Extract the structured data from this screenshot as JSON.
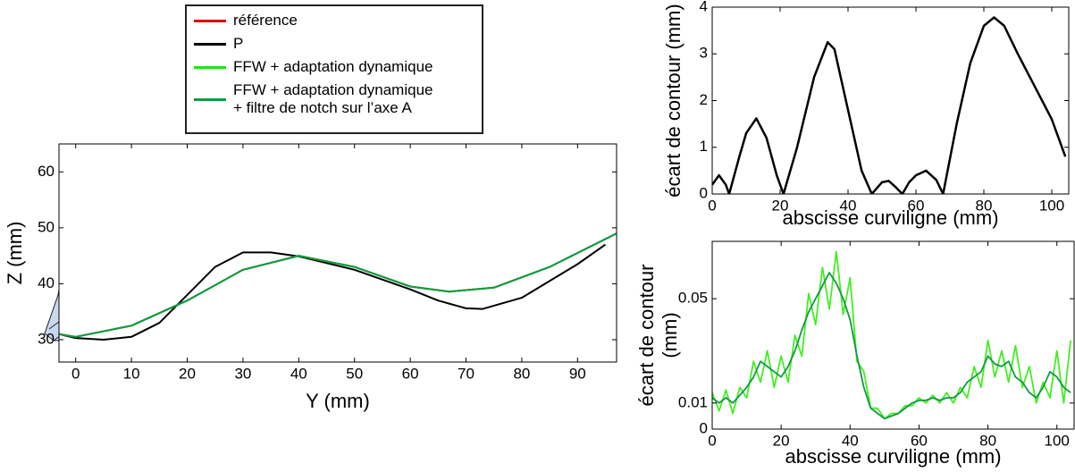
{
  "chart_data": [
    {
      "type": "line",
      "xlabel": "Y (mm)",
      "ylabel": "Z (mm)",
      "xlim": [
        -3,
        97
      ],
      "ylim": [
        26,
        65
      ],
      "xticks": [
        0,
        10,
        20,
        30,
        40,
        50,
        60,
        70,
        80,
        90
      ],
      "yticks": [
        30,
        40,
        50,
        60
      ],
      "series": [
        {
          "name": "référence",
          "color": "#e00000",
          "x": [
            -3,
            0,
            10,
            20,
            30,
            40,
            50,
            60,
            67,
            75,
            85,
            97
          ],
          "values": [
            31,
            30.5,
            32.5,
            37,
            42.5,
            45,
            43,
            39.5,
            38.6,
            39.3,
            43,
            49
          ]
        },
        {
          "name": "P",
          "color": "#000000",
          "x": [
            -3,
            0,
            5,
            10,
            15,
            20,
            25,
            30,
            35,
            40,
            50,
            60,
            65,
            70,
            73,
            80,
            90,
            95
          ],
          "values": [
            31,
            30.3,
            30,
            30.5,
            33,
            38,
            43,
            45.6,
            45.6,
            44.9,
            42.5,
            39,
            37,
            35.6,
            35.5,
            37.5,
            43.5,
            47
          ]
        },
        {
          "name": "FFW + adaptation dynamique",
          "color": "#22e022",
          "x": [
            -3,
            0,
            10,
            20,
            30,
            40,
            50,
            60,
            67,
            75,
            85,
            97
          ],
          "values": [
            31,
            30.5,
            32.5,
            37,
            42.5,
            45,
            43,
            39.5,
            38.6,
            39.3,
            43,
            49
          ]
        },
        {
          "name": "FFW + adaptation dynamique\n+ filtre de notch sur l’axe A",
          "color": "#119944",
          "x": [
            -3,
            0,
            10,
            20,
            30,
            40,
            50,
            60,
            67,
            75,
            85,
            97
          ],
          "values": [
            31,
            30.5,
            32.5,
            37,
            42.5,
            45,
            43,
            39.5,
            38.6,
            39.3,
            43,
            49
          ]
        }
      ]
    },
    {
      "type": "line",
      "xlabel": "abscisse curviligne (mm)",
      "ylabel": "écart de contour (mm)",
      "xlim": [
        0,
        105
      ],
      "ylim": [
        0,
        4
      ],
      "xticks": [
        0,
        20,
        40,
        60,
        80,
        100
      ],
      "yticks": [
        0,
        1,
        2,
        3,
        4
      ],
      "series": [
        {
          "color": "#000000",
          "x": [
            0,
            2,
            4,
            5,
            8,
            10,
            13,
            16,
            19,
            21,
            25,
            30,
            34,
            36,
            40,
            44,
            47,
            50,
            52,
            54,
            56,
            58,
            60,
            63,
            66,
            68,
            72,
            76,
            80,
            83,
            86,
            90,
            95,
            100,
            104
          ],
          "values": [
            0.2,
            0.4,
            0.2,
            0,
            0.8,
            1.3,
            1.62,
            1.2,
            0.4,
            0,
            1,
            2.5,
            3.25,
            3.1,
            1.8,
            0.5,
            0,
            0.25,
            0.28,
            0.15,
            0,
            0.25,
            0.4,
            0.5,
            0.3,
            0,
            1.5,
            2.8,
            3.6,
            3.78,
            3.6,
            3,
            2.3,
            1.6,
            0.8
          ]
        }
      ]
    },
    {
      "type": "line",
      "xlabel": "abscisse curviligne (mm)",
      "ylabel": [
        "écart de contour",
        "(mm)"
      ],
      "xlim": [
        0,
        105
      ],
      "ylim": [
        0,
        0.072
      ],
      "xticks": [
        0,
        20,
        40,
        60,
        80,
        100
      ],
      "yticks": [
        0,
        0.01,
        0.05
      ],
      "x": [
        0,
        2,
        4,
        6,
        8,
        10,
        12,
        14,
        16,
        18,
        20,
        22,
        24,
        26,
        28,
        30,
        32,
        34,
        36,
        38,
        40,
        42,
        44,
        46,
        48,
        50,
        52,
        54,
        56,
        58,
        60,
        62,
        64,
        66,
        68,
        70,
        72,
        74,
        76,
        78,
        80,
        82,
        84,
        86,
        88,
        90,
        92,
        94,
        96,
        98,
        100,
        102,
        104
      ],
      "series": [
        {
          "color": "#44ee22",
          "values": [
            0.014,
            0.007,
            0.015,
            0.006,
            0.016,
            0.012,
            0.026,
            0.018,
            0.03,
            0.016,
            0.028,
            0.018,
            0.036,
            0.028,
            0.052,
            0.04,
            0.062,
            0.046,
            0.068,
            0.044,
            0.058,
            0.026,
            0.022,
            0.008,
            0.008,
            0.004,
            0.006,
            0.006,
            0.009,
            0.009,
            0.012,
            0.01,
            0.013,
            0.01,
            0.014,
            0.01,
            0.016,
            0.012,
            0.024,
            0.016,
            0.034,
            0.02,
            0.03,
            0.018,
            0.032,
            0.016,
            0.024,
            0.01,
            0.018,
            0.012,
            0.03,
            0.01,
            0.034
          ]
        },
        {
          "color": "#119944",
          "values": [
            0.012,
            0.01,
            0.012,
            0.01,
            0.013,
            0.016,
            0.02,
            0.026,
            0.024,
            0.022,
            0.02,
            0.024,
            0.03,
            0.038,
            0.045,
            0.05,
            0.055,
            0.06,
            0.056,
            0.05,
            0.042,
            0.028,
            0.016,
            0.008,
            0.006,
            0.004,
            0.005,
            0.006,
            0.008,
            0.01,
            0.011,
            0.011,
            0.012,
            0.011,
            0.012,
            0.012,
            0.014,
            0.018,
            0.02,
            0.022,
            0.028,
            0.025,
            0.024,
            0.026,
            0.02,
            0.018,
            0.014,
            0.012,
            0.016,
            0.022,
            0.02,
            0.016,
            0.014
          ]
        }
      ]
    }
  ]
}
